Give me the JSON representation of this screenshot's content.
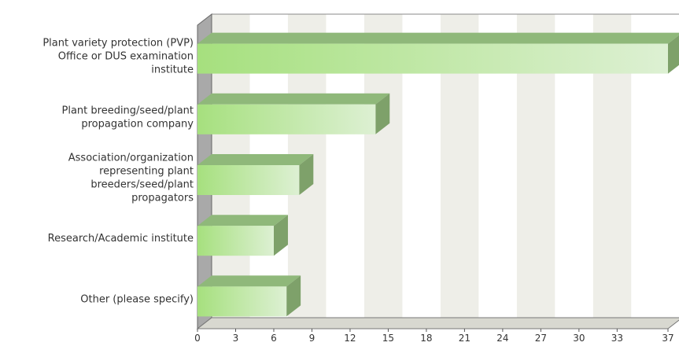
{
  "chart_data": {
    "type": "bar",
    "orientation": "horizontal",
    "style": "3d",
    "categories": [
      [
        "Plant variety protection (PVP)",
        "Office or DUS examination",
        "institute"
      ],
      [
        "Plant breeding/seed/plant",
        "propagation company"
      ],
      [
        "Association/organization",
        "representing plant",
        "breeders/seed/plant",
        "propagators"
      ],
      [
        "Research/Academic institute"
      ],
      [
        "Other (please specify)"
      ]
    ],
    "values": [
      37,
      14,
      8,
      6,
      7
    ],
    "x_ticks": [
      "0",
      "3",
      "6",
      "9",
      "12",
      "15",
      "18",
      "21",
      "24",
      "27",
      "30",
      "33",
      "37"
    ],
    "xlim": [
      0,
      37
    ],
    "grid": "vertical alternating bands",
    "colors": {
      "bar_light": "#ddf0d3",
      "bar_dark": "#a6e07e",
      "bar_top": "#8fb87a",
      "bar_side": "#7ea16a",
      "band_light": "#eeeee8",
      "band_white": "#ffffff",
      "side_wall": "#a9a9a9",
      "text": "#333333"
    }
  }
}
